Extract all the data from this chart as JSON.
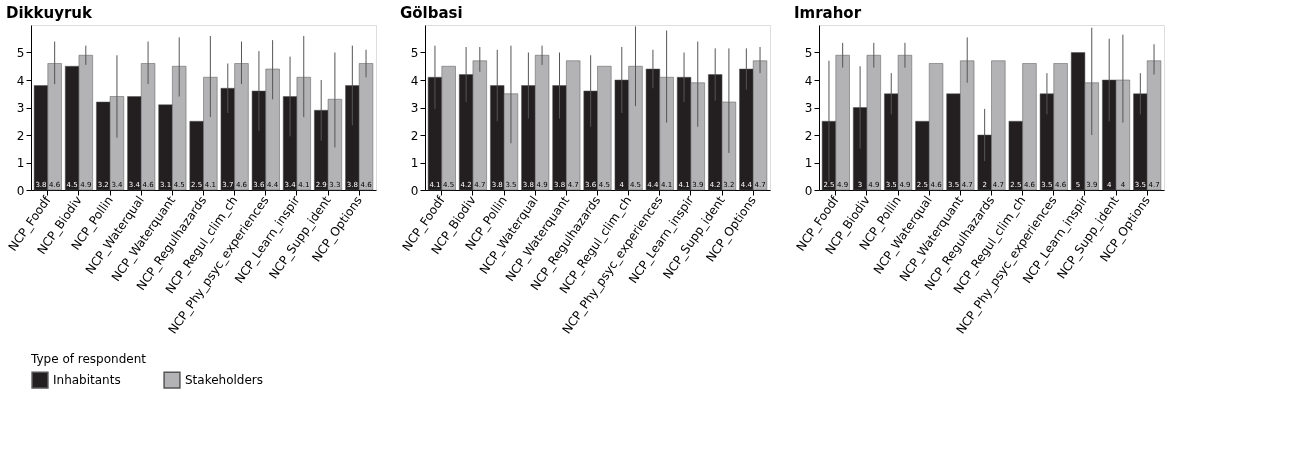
{
  "chart_data": [
    {
      "type": "bar",
      "title": "Dikkuyruk",
      "categories": [
        "NCP_Foodf",
        "NCP_Biodiv",
        "NCP_Pollin",
        "NCP_Waterqual",
        "NCP_Waterquant",
        "NCP_Regulhazards",
        "NCP_Regul_clim_ch",
        "NCP_Phy_psyc_experiences",
        "NCP_Learn_inspir",
        "NCP_Supp_ident",
        "NCP_Options"
      ],
      "legend_title": "Type of respondent",
      "legend": "bottom",
      "ylim": [
        0,
        6
      ],
      "yticks": [
        0,
        1,
        2,
        3,
        4,
        5
      ],
      "grid": false,
      "data_labels": true,
      "series": [
        {
          "name": "Inhabitants",
          "color": "#231f20",
          "values": [
            3.8,
            4.5,
            3.2,
            3.4,
            3.1,
            2.5,
            3.7,
            3.6,
            3.4,
            2.9,
            3.8
          ],
          "errors": [
            null,
            null,
            null,
            null,
            null,
            null,
            0.9,
            1.45,
            1.45,
            1.1,
            1.45
          ]
        },
        {
          "name": "Stakeholders",
          "color": "#b3b3b6",
          "values": [
            4.6,
            4.9,
            3.4,
            4.6,
            4.5,
            4.1,
            4.6,
            4.4,
            4.1,
            3.3,
            4.6
          ],
          "errors": [
            [
              3.85,
              5.4
            ],
            [
              4.55,
              5.25
            ],
            [
              1.9,
              4.9
            ],
            [
              3.85,
              5.4
            ],
            [
              3.4,
              5.55
            ],
            [
              2.65,
              5.6
            ],
            [
              3.85,
              5.4
            ],
            [
              3.3,
              5.45
            ],
            [
              2.65,
              5.6
            ],
            [
              1.55,
              5.0
            ],
            [
              4.1,
              5.1
            ]
          ]
        }
      ]
    },
    {
      "type": "bar",
      "title": "Gölbasi",
      "categories": [
        "NCP_Foodf",
        "NCP_Biodiv",
        "NCP_Pollin",
        "NCP_Waterqual",
        "NCP_Waterquant",
        "NCP_Regulhazards",
        "NCP_Regul_clim_ch",
        "NCP_Phy_psyc_experiences",
        "NCP_Learn_inspir",
        "NCP_Supp_ident",
        "NCP_Options"
      ],
      "ylim": [
        0,
        6
      ],
      "yticks": [
        0,
        1,
        2,
        3,
        4,
        5
      ],
      "grid": false,
      "data_labels": true,
      "series": [
        {
          "name": "Inhabitants",
          "color": "#231f20",
          "values": [
            4.1,
            4.2,
            3.8,
            3.8,
            3.8,
            3.6,
            4,
            4.4,
            4.1,
            4.2,
            4.4
          ],
          "errors": [
            1.15,
            1.0,
            1.3,
            1.2,
            1.2,
            1.3,
            1.2,
            0.7,
            0.9,
            0.95,
            0.75
          ]
        },
        {
          "name": "Stakeholders",
          "color": "#b3b3b6",
          "values": [
            4.5,
            4.7,
            3.5,
            4.9,
            4.7,
            4.5,
            4.5,
            4.1,
            3.9,
            3.2,
            4.7
          ],
          "errors": [
            null,
            [
              4.3,
              5.2
            ],
            [
              1.7,
              5.25
            ],
            0.35,
            null,
            null,
            [
              3.05,
              5.95
            ],
            [
              2.45,
              5.8
            ],
            [
              2.3,
              5.4
            ],
            [
              1.35,
              5.15
            ],
            [
              4.25,
              5.2
            ]
          ]
        }
      ]
    },
    {
      "type": "bar",
      "title": "Imrahor",
      "categories": [
        "NCP_Foodf",
        "NCP_Biodiv",
        "NCP_Pollin",
        "NCP_Waterqual",
        "NCP_Waterquant",
        "NCP_Regulhazards",
        "NCP_Regul_clim_ch",
        "NCP_Phy_psyc_experiences",
        "NCP_Learn_inspir",
        "NCP_Supp_ident",
        "NCP_Options"
      ],
      "ylim": [
        0,
        6
      ],
      "yticks": [
        0,
        1,
        2,
        3,
        4,
        5
      ],
      "grid": false,
      "data_labels": true,
      "series": [
        {
          "name": "Inhabitants",
          "color": "#231f20",
          "values": [
            2.5,
            3,
            3.5,
            2.5,
            3.5,
            2,
            2.5,
            3.5,
            5,
            4,
            3.5
          ],
          "errors": [
            2.2,
            1.5,
            0.75,
            null,
            null,
            0.95,
            null,
            0.75,
            null,
            1.5,
            0.75
          ]
        },
        {
          "name": "Stakeholders",
          "color": "#b3b3b6",
          "values": [
            4.9,
            4.9,
            4.9,
            4.6,
            4.7,
            4.7,
            4.6,
            4.6,
            3.9,
            4,
            4.7
          ],
          "errors": [
            [
              4.45,
              5.35
            ],
            [
              4.45,
              5.35
            ],
            [
              4.45,
              5.35
            ],
            null,
            [
              3.9,
              5.55
            ],
            null,
            null,
            null,
            [
              2.0,
              5.9
            ],
            [
              2.45,
              5.65
            ],
            [
              4.2,
              5.3
            ]
          ]
        }
      ]
    }
  ]
}
